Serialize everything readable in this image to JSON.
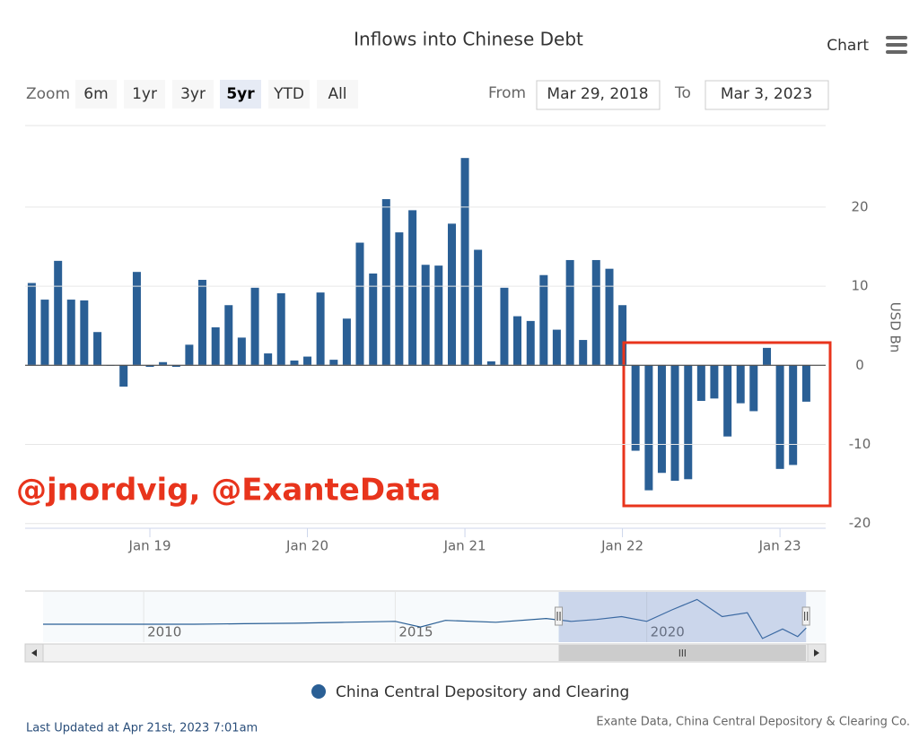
{
  "chart_data": {
    "type": "bar",
    "title": "Inflows into Chinese Debt",
    "x": [
      2018.25,
      2018.333,
      2018.417,
      2018.5,
      2018.583,
      2018.667,
      2018.75,
      2018.833,
      2018.917,
      2019.0,
      2019.083,
      2019.167,
      2019.25,
      2019.333,
      2019.417,
      2019.5,
      2019.583,
      2019.667,
      2019.75,
      2019.833,
      2019.917,
      2020.0,
      2020.083,
      2020.167,
      2020.25,
      2020.333,
      2020.417,
      2020.5,
      2020.583,
      2020.667,
      2020.75,
      2020.833,
      2020.917,
      2021.0,
      2021.083,
      2021.167,
      2021.25,
      2021.333,
      2021.417,
      2021.5,
      2021.583,
      2021.667,
      2021.75,
      2021.833,
      2021.917,
      2022.0,
      2022.083,
      2022.167,
      2022.25,
      2022.333,
      2022.417,
      2022.5,
      2022.583,
      2022.667,
      2022.75,
      2022.833,
      2022.917,
      2023.0,
      2023.083,
      2023.167
    ],
    "series": [
      {
        "name": "China Central Depository and Clearing",
        "color": "#2a5f95",
        "values": [
          10.4,
          8.3,
          13.2,
          8.3,
          8.2,
          4.2,
          0,
          -2.7,
          11.8,
          -0.2,
          0.4,
          -0.2,
          2.6,
          10.8,
          4.8,
          7.6,
          3.5,
          9.8,
          1.5,
          9.1,
          0.6,
          1.1,
          9.2,
          0.7,
          5.9,
          15.5,
          11.6,
          21.0,
          16.8,
          19.6,
          12.7,
          12.6,
          17.9,
          26.2,
          14.6,
          0.5,
          9.8,
          6.2,
          5.6,
          11.4,
          4.5,
          13.3,
          3.2,
          13.3,
          12.2,
          7.6,
          -10.8,
          -15.8,
          -13.6,
          -14.6,
          -14.4,
          -4.5,
          -4.2,
          -9.0,
          -4.8,
          -5.8,
          2.2,
          -13.1,
          -12.6,
          -4.6
        ]
      }
    ],
    "xlim": [
      2018.208,
      2023.29
    ],
    "xticks": [
      {
        "value": 2019,
        "label": "Jan 19"
      },
      {
        "value": 2020,
        "label": "Jan 20"
      },
      {
        "value": 2021,
        "label": "Jan 21"
      },
      {
        "value": 2022,
        "label": "Jan 22"
      },
      {
        "value": 2023,
        "label": "Jan 23"
      }
    ],
    "ylim": [
      -20.6,
      30.3
    ],
    "yticks": [
      -20,
      -10,
      0,
      10,
      20
    ],
    "y_label": "USD Bn",
    "grid": true,
    "watermark": "@jnordvig, @ExanteData",
    "navigator": {
      "x": [
        2008,
        2009,
        2010,
        2011,
        2012,
        2013,
        2014,
        2015,
        2015.5,
        2016,
        2017,
        2018,
        2018.5,
        2019,
        2019.5,
        2020,
        2020.5,
        2021,
        2021.5,
        2022,
        2022.3,
        2022.7,
        2023,
        2023.17
      ],
      "values": [
        0,
        0,
        0,
        0,
        0.5,
        1,
        2,
        3,
        -3,
        4,
        2,
        6,
        3,
        5,
        8,
        3,
        15,
        26,
        8,
        12,
        -15,
        -5,
        -13,
        -4
      ],
      "xlim": [
        2008,
        2023.2
      ],
      "ylim": [
        -17,
        32
      ],
      "xticks": [
        2010,
        2015,
        2020
      ]
    }
  },
  "menu_label": "Chart",
  "zoom": {
    "label": "Zoom",
    "buttons": [
      "6m",
      "1yr",
      "3yr",
      "5yr",
      "YTD",
      "All"
    ],
    "selected_index": 3
  },
  "range": {
    "from_label": "From",
    "from": "Mar 29, 2018",
    "to_label": "To",
    "to": "Mar 3, 2023"
  },
  "footer": {
    "updated": "Last Updated at Apr 21st, 2023 7:01am",
    "source": "Exante Data, China Central Depository & Clearing Co."
  }
}
